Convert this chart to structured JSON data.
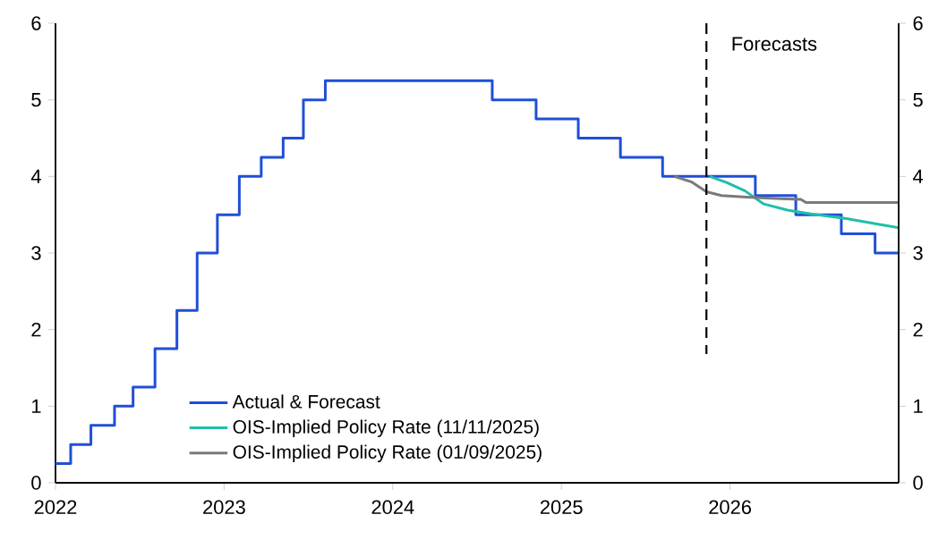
{
  "chart_data": {
    "type": "line",
    "xlim": [
      2022,
      2027
    ],
    "xticks": [
      2022,
      2023,
      2024,
      2025,
      2026
    ],
    "ylim": [
      0,
      6
    ],
    "yticks": [
      0,
      1,
      2,
      3,
      4,
      5,
      6
    ],
    "y2lim": [
      0,
      6
    ],
    "y2ticks": [
      0,
      1,
      2,
      3,
      4,
      5,
      6
    ],
    "legend": "bottom",
    "ref_lines": [
      {
        "axis": "x",
        "value": 2025.86,
        "label": "Forecasts",
        "line_style": "dashed",
        "color": "#000000"
      }
    ],
    "series": [
      {
        "name": "Actual & Forecast",
        "type": "step",
        "color": "#1f4fd8",
        "x": [
          2022.0,
          2022.09,
          2022.21,
          2022.35,
          2022.46,
          2022.59,
          2022.72,
          2022.84,
          2022.96,
          2023.09,
          2023.22,
          2023.35,
          2023.47,
          2023.6,
          2024.59,
          2024.85,
          2025.1,
          2025.35,
          2025.6,
          2026.15,
          2026.39,
          2026.66,
          2026.86,
          2027.0
        ],
        "values": [
          0.25,
          0.5,
          0.75,
          1.0,
          1.25,
          1.75,
          2.25,
          3.0,
          3.5,
          4.0,
          4.25,
          4.5,
          5.0,
          5.25,
          5.0,
          4.75,
          4.5,
          4.25,
          4.0,
          3.75,
          3.5,
          3.25,
          3.0,
          3.0
        ]
      },
      {
        "name": "OIS-Implied Policy Rate (11/11/2025)",
        "color": "#1fbfaa",
        "x": [
          2025.88,
          2025.98,
          2026.09,
          2026.2,
          2026.34,
          2026.48,
          2026.69,
          2026.87,
          2027.0
        ],
        "values": [
          4.0,
          3.92,
          3.81,
          3.64,
          3.56,
          3.51,
          3.45,
          3.38,
          3.33
        ]
      },
      {
        "name": "OIS-Implied Policy Rate (01/09/2025)",
        "color": "#7a7a7a",
        "x": [
          2025.67,
          2025.77,
          2025.86,
          2025.95,
          2026.1,
          2026.3,
          2026.42,
          2026.45,
          2027.0
        ],
        "values": [
          4.0,
          3.93,
          3.8,
          3.75,
          3.73,
          3.71,
          3.7,
          3.66,
          3.66
        ]
      }
    ]
  }
}
